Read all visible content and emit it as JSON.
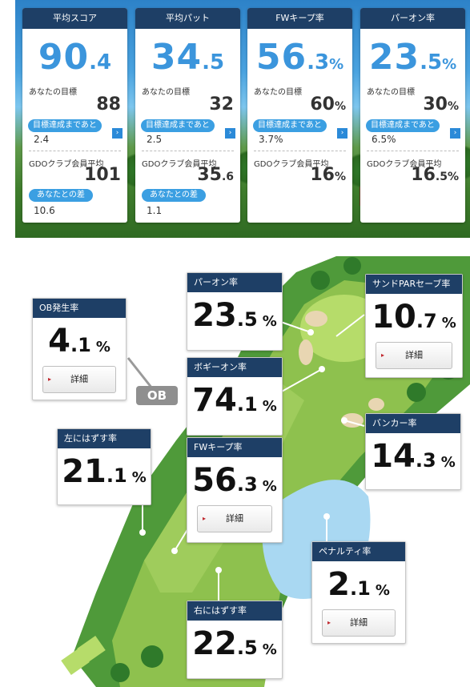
{
  "summary_cards": [
    {
      "title": "平均スコア",
      "int": "90",
      "dec": ".4",
      "pct": "",
      "goal_label": "あなたの目標",
      "goal_int": "88",
      "goal_pct": "",
      "pill_label": "目標達成まであと",
      "pill_value": "2.4",
      "club_label": "GDOクラブ会員平均",
      "club_int": "101",
      "club_dec": "",
      "club_pct": "",
      "diff_label": "あなたとの差",
      "diff_value": "10.6"
    },
    {
      "title": "平均パット",
      "int": "34",
      "dec": ".5",
      "pct": "",
      "goal_label": "あなたの目標",
      "goal_int": "32",
      "goal_pct": "",
      "pill_label": "目標達成まであと",
      "pill_value": "2.5",
      "club_label": "GDOクラブ会員平均",
      "club_int": "35",
      "club_dec": ".6",
      "club_pct": "",
      "diff_label": "あなたとの差",
      "diff_value": "1.1"
    },
    {
      "title": "FWキープ率",
      "int": "56",
      "dec": ".3",
      "pct": "%",
      "goal_label": "あなたの目標",
      "goal_int": "60",
      "goal_pct": "%",
      "pill_label": "目標達成まであと",
      "pill_value": "3.7%",
      "club_label": "GDOクラブ会員平均",
      "club_int": "16",
      "club_dec": "",
      "club_pct": "%",
      "diff_label": "",
      "diff_value": ""
    },
    {
      "title": "パーオン率",
      "int": "23",
      "dec": ".5",
      "pct": "%",
      "goal_label": "あなたの目標",
      "goal_int": "30",
      "goal_pct": "%",
      "pill_label": "目標達成まであと",
      "pill_value": "6.5%",
      "club_label": "GDOクラブ会員平均",
      "club_int": "16",
      "club_dec": ".5",
      "club_pct": "%",
      "diff_label": "",
      "diff_value": ""
    }
  ],
  "icons": {
    "question": "?",
    "arrow": "›",
    "triangle": "▸"
  },
  "map": {
    "ob_tag": "OB",
    "detail_label": "詳細",
    "stats": {
      "ob": {
        "title": "OB発生率",
        "int": "4",
        "dec": ".1",
        "pct": "%"
      },
      "paron": {
        "title": "パーオン率",
        "int": "23",
        "dec": ".5",
        "pct": "%"
      },
      "sand": {
        "title": "サンドPARセーブ率",
        "int": "10",
        "dec": ".7",
        "pct": "%"
      },
      "bogey": {
        "title": "ボギーオン率",
        "int": "74",
        "dec": ".1",
        "pct": "%"
      },
      "left": {
        "title": "左にはずす率",
        "int": "21",
        "dec": ".1",
        "pct": "%"
      },
      "fw": {
        "title": "FWキープ率",
        "int": "56",
        "dec": ".3",
        "pct": "%"
      },
      "bunker": {
        "title": "バンカー率",
        "int": "14",
        "dec": ".3",
        "pct": "%"
      },
      "penalty": {
        "title": "ペナルティ率",
        "int": "2",
        "dec": ".1",
        "pct": "%"
      },
      "right": {
        "title": "右にはずす率",
        "int": "22",
        "dec": ".5",
        "pct": "%"
      }
    }
  },
  "colors": {
    "header_navy": "#1e3f66",
    "accent_blue": "#3b9fe2",
    "value_blue": "#3b95dc"
  }
}
